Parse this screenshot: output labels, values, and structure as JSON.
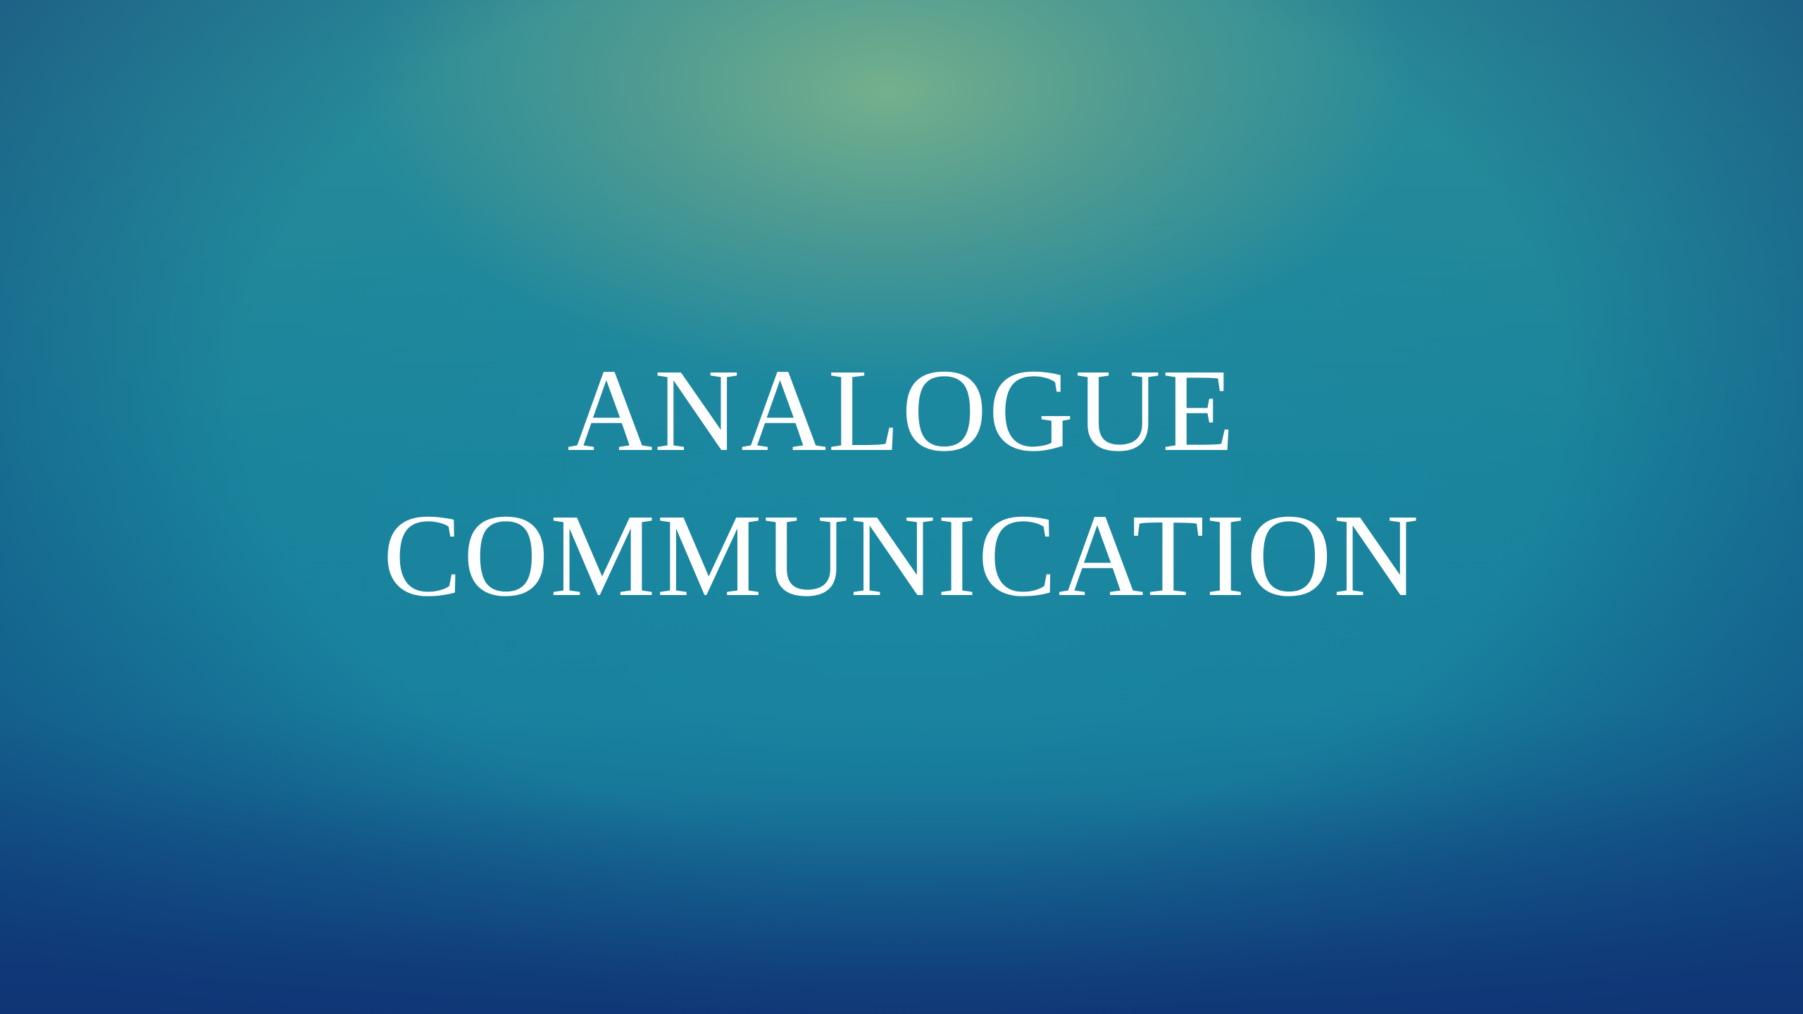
{
  "slide": {
    "title_lines": [
      "ANALOGUE",
      "COMMUNICATION"
    ],
    "text_color": "#ffffff",
    "background_colors": {
      "top_center_glow": "#6aa78e",
      "center": "#1a849c",
      "bottom_edge": "#113f7a"
    }
  }
}
